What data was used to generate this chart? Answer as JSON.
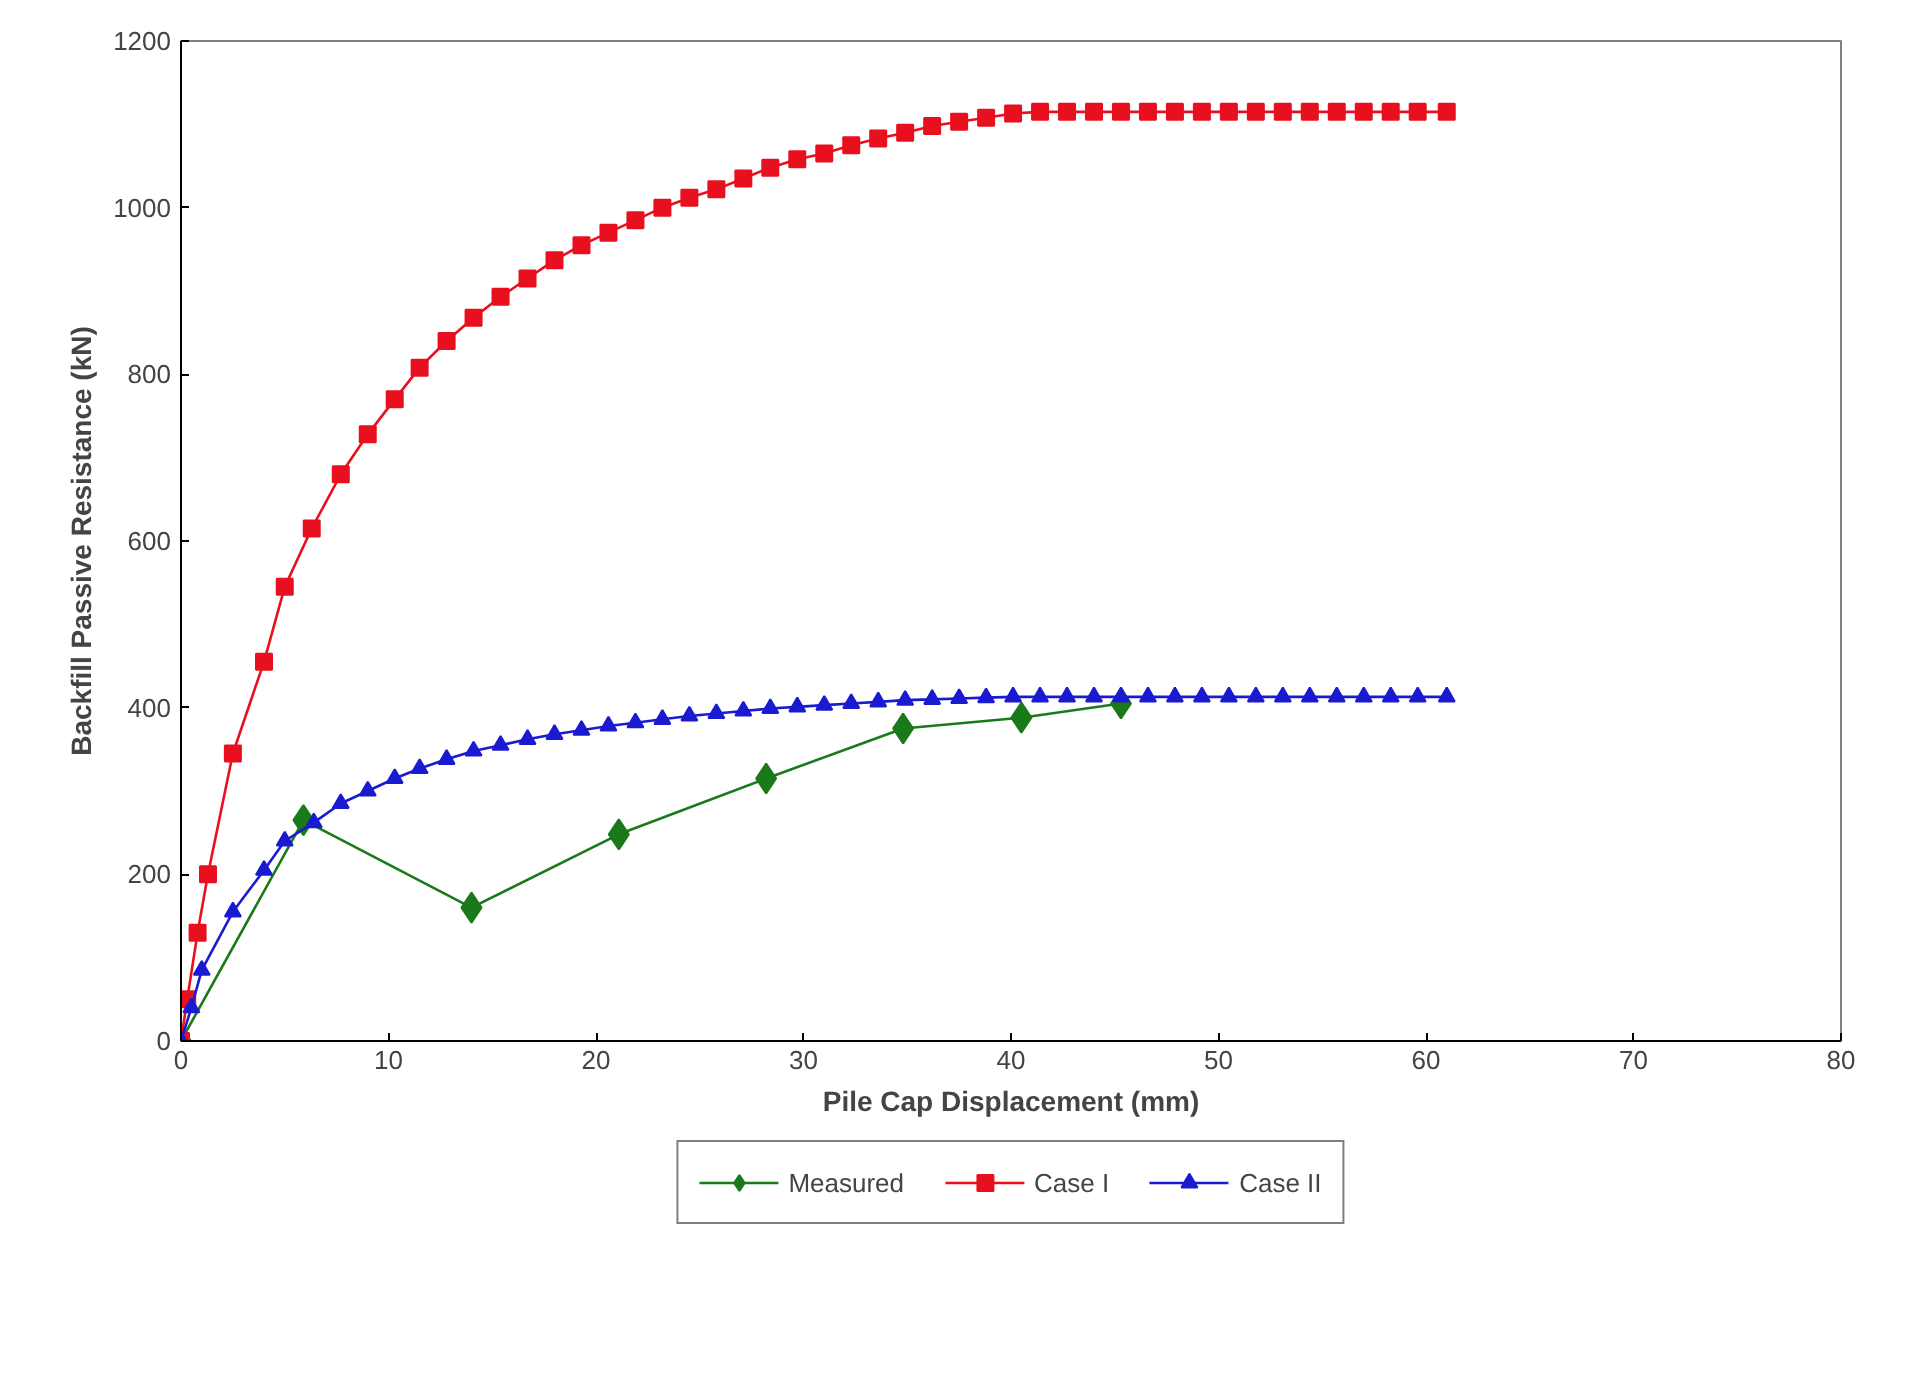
{
  "chart_data": {
    "type": "line",
    "xlabel": "Pile Cap Displacement (mm)",
    "ylabel": "Backfill Passive Resistance (kN)",
    "xlim": [
      0,
      80
    ],
    "ylim": [
      0,
      1200
    ],
    "xticks": [
      0,
      10,
      20,
      30,
      40,
      50,
      60,
      70,
      80
    ],
    "yticks": [
      0,
      200,
      400,
      600,
      800,
      1000,
      1200
    ],
    "grid": false,
    "legend": "bottom",
    "line_style": "solid",
    "series": [
      {
        "name": "Measured",
        "color": "#1a7a1a",
        "marker": "diamond",
        "x": [
          0,
          5.9,
          14,
          21.1,
          28.2,
          34.8,
          40.5,
          45.3
        ],
        "values": [
          0,
          265,
          160,
          248,
          315,
          375,
          388,
          405
        ]
      },
      {
        "name": "Case I",
        "color": "#e8101e",
        "marker": "square",
        "x": [
          0,
          0.3,
          0.8,
          1.3,
          2.5,
          4,
          5,
          6.3,
          7.7,
          9,
          10.3,
          11.5,
          12.8,
          14.1,
          15.4,
          16.7,
          18,
          19.3,
          20.6,
          21.9,
          23.2,
          24.5,
          25.8,
          27.1,
          28.4,
          29.7,
          31,
          32.3,
          33.6,
          34.9,
          36.2,
          37.5,
          38.8,
          40.1,
          41.4,
          42.7,
          44,
          45.3,
          46.6,
          47.9,
          49.2,
          50.5,
          51.8,
          53.1,
          54.4,
          55.7,
          57,
          58.3,
          59.6,
          61
        ],
        "values": [
          0,
          50,
          130,
          200,
          345,
          455,
          545,
          615,
          680,
          728,
          770,
          808,
          840,
          868,
          893,
          915,
          937,
          955,
          970,
          985,
          1000,
          1012,
          1022,
          1035,
          1048,
          1058,
          1065,
          1075,
          1083,
          1090,
          1098,
          1103,
          1108,
          1113,
          1115,
          1115,
          1115,
          1115,
          1115,
          1115,
          1115,
          1115,
          1115,
          1115,
          1115,
          1115,
          1115,
          1115,
          1115,
          1115
        ]
      },
      {
        "name": "Case II",
        "color": "#1a1ad0",
        "marker": "triangle",
        "x": [
          0,
          0.5,
          1,
          2.5,
          4,
          5,
          6.4,
          7.7,
          9,
          10.3,
          11.5,
          12.8,
          14.1,
          15.4,
          16.7,
          18,
          19.3,
          20.6,
          21.9,
          23.2,
          24.5,
          25.8,
          27.1,
          28.4,
          29.7,
          31,
          32.3,
          33.6,
          34.9,
          36.2,
          37.5,
          38.8,
          40.1,
          41.4,
          42.7,
          44,
          45.3,
          46.6,
          47.9,
          49.2,
          50.5,
          51.8,
          53.1,
          54.4,
          55.7,
          57,
          58.3,
          59.6,
          61
        ],
        "values": [
          0,
          40,
          85,
          155,
          205,
          240,
          262,
          285,
          300,
          315,
          327,
          338,
          348,
          355,
          362,
          368,
          373,
          378,
          382,
          386,
          390,
          393,
          396,
          399,
          401,
          403,
          405,
          407,
          409,
          410,
          411,
          412,
          413,
          413,
          413,
          413,
          413,
          413,
          413,
          413,
          413,
          413,
          413,
          413,
          413,
          413,
          413,
          413,
          413
        ]
      }
    ]
  }
}
